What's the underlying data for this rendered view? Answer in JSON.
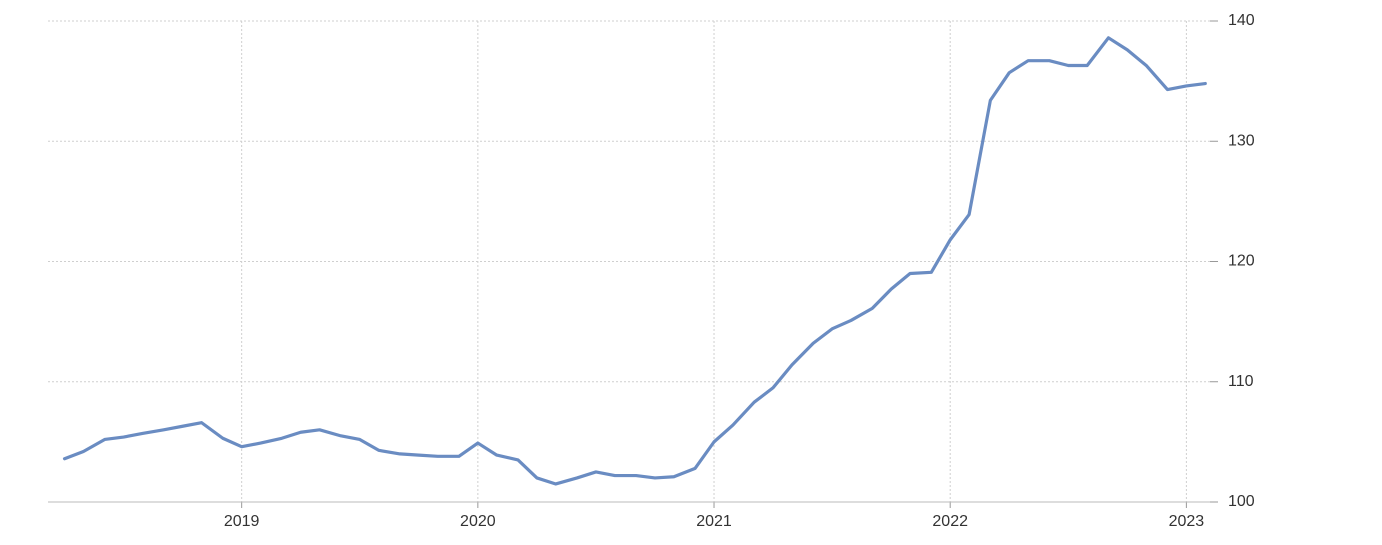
{
  "chart_data": {
    "type": "line",
    "x": [
      2018.25,
      2018.33,
      2018.42,
      2018.5,
      2018.58,
      2018.67,
      2018.75,
      2018.83,
      2018.92,
      2019,
      2019.08,
      2019.17,
      2019.25,
      2019.33,
      2019.42,
      2019.5,
      2019.58,
      2019.67,
      2019.75,
      2019.83,
      2019.92,
      2020,
      2020.08,
      2020.17,
      2020.25,
      2020.33,
      2020.42,
      2020.5,
      2020.58,
      2020.67,
      2020.75,
      2020.83,
      2020.92,
      2021,
      2021.08,
      2021.17,
      2021.25,
      2021.33,
      2021.42,
      2021.5,
      2021.58,
      2021.67,
      2021.75,
      2021.83,
      2021.92,
      2022,
      2022.08,
      2022.17,
      2022.25,
      2022.33,
      2022.42,
      2022.5,
      2022.58,
      2022.67,
      2022.75,
      2022.83,
      2022.92,
      2023,
      2023.08
    ],
    "values": [
      103.6,
      104.2,
      105.2,
      105.4,
      105.7,
      106.0,
      106.3,
      106.6,
      105.3,
      104.6,
      104.9,
      105.3,
      105.8,
      106.0,
      105.5,
      105.2,
      104.3,
      104.0,
      103.9,
      103.8,
      103.8,
      104.9,
      103.9,
      103.5,
      102.0,
      101.5,
      102.0,
      102.5,
      102.2,
      102.2,
      102.0,
      102.1,
      102.8,
      105.0,
      106.4,
      108.3,
      109.5,
      111.4,
      113.2,
      114.4,
      115.1,
      116.1,
      117.7,
      119.0,
      119.1,
      121.8,
      123.9,
      133.4,
      135.7,
      136.7,
      136.7,
      136.3,
      136.3,
      138.6,
      137.6,
      136.3,
      134.3,
      134.6,
      134.8
    ],
    "color": "#6a8cc2",
    "xlim": [
      2018.18,
      2023.1
    ],
    "xticks": [
      2019,
      2020,
      2021,
      2022,
      2023
    ],
    "ylim": [
      100,
      140
    ],
    "yticks": [
      100,
      110,
      120,
      130,
      140
    ],
    "grid": true
  }
}
